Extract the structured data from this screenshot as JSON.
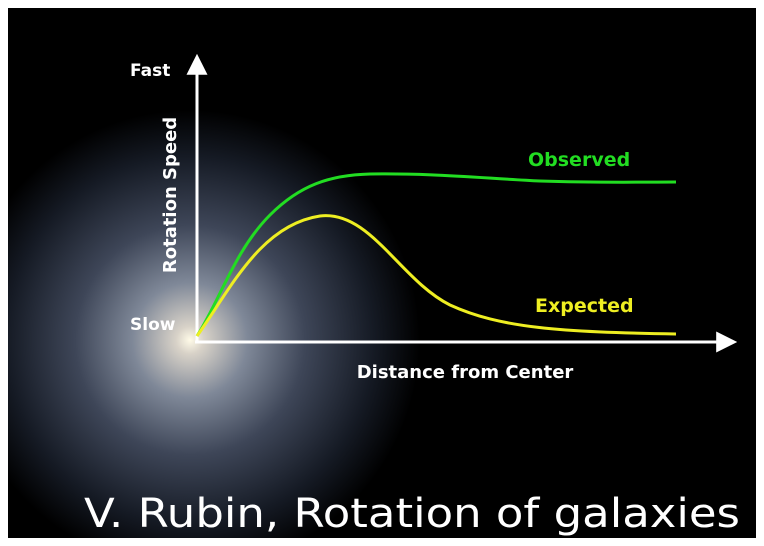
{
  "diagram": {
    "title": "V. Rubin, Rotation of galaxies",
    "y_axis": {
      "label": "Rotation Speed",
      "top": "Fast",
      "bottom": "Slow"
    },
    "x_axis": {
      "label": "Distance from Center"
    },
    "curves": [
      {
        "label": "Observed"
      },
      {
        "label": "Expected"
      }
    ]
  }
}
